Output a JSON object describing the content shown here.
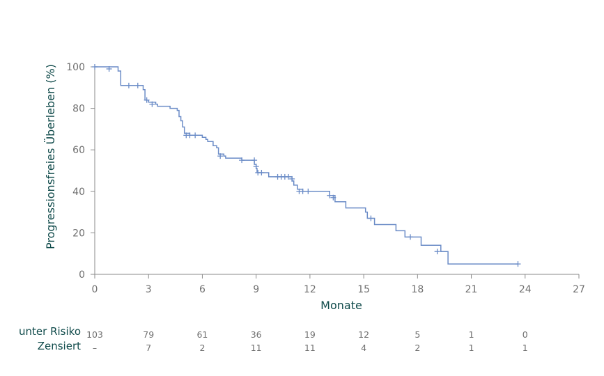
{
  "chart_data": {
    "type": "line",
    "xlabel": "Monate",
    "ylabel": "Progressionsfreies Überleben (%)",
    "xlim": [
      0,
      27
    ],
    "ylim": [
      0,
      100
    ],
    "xticks": [
      "0",
      "3",
      "6",
      "9",
      "12",
      "15",
      "18",
      "21",
      "24",
      "27"
    ],
    "yticks": [
      "0",
      "20",
      "40",
      "60",
      "80",
      "100"
    ],
    "grid": false,
    "series": [
      {
        "color": "#6b8cc7",
        "step_points": [
          [
            0,
            100
          ],
          [
            1.2,
            100
          ],
          [
            1.3,
            98
          ],
          [
            1.45,
            91
          ],
          [
            2.6,
            91
          ],
          [
            2.7,
            89
          ],
          [
            2.8,
            84
          ],
          [
            3.0,
            83
          ],
          [
            3.4,
            82
          ],
          [
            3.5,
            81
          ],
          [
            4.2,
            80
          ],
          [
            4.6,
            79
          ],
          [
            4.7,
            76
          ],
          [
            4.8,
            74
          ],
          [
            4.9,
            71
          ],
          [
            5.0,
            68
          ],
          [
            5.3,
            67
          ],
          [
            6.0,
            66
          ],
          [
            6.2,
            65
          ],
          [
            6.3,
            64
          ],
          [
            6.6,
            62
          ],
          [
            6.8,
            61
          ],
          [
            6.9,
            58
          ],
          [
            7.2,
            57
          ],
          [
            7.3,
            56
          ],
          [
            8.2,
            55
          ],
          [
            8.8,
            55
          ],
          [
            8.9,
            53
          ],
          [
            9.0,
            51
          ],
          [
            9.05,
            49
          ],
          [
            9.6,
            49
          ],
          [
            9.7,
            47
          ],
          [
            10.9,
            47
          ],
          [
            11.0,
            45
          ],
          [
            11.1,
            43
          ],
          [
            11.3,
            41
          ],
          [
            11.6,
            40
          ],
          [
            12.0,
            40
          ],
          [
            13.1,
            38
          ],
          [
            13.4,
            35
          ],
          [
            13.9,
            35
          ],
          [
            14.0,
            32
          ],
          [
            14.9,
            32
          ],
          [
            15.1,
            30
          ],
          [
            15.2,
            27
          ],
          [
            15.6,
            24
          ],
          [
            16.6,
            24
          ],
          [
            16.8,
            21
          ],
          [
            17.2,
            21
          ],
          [
            17.3,
            18
          ],
          [
            18.0,
            18
          ],
          [
            18.2,
            14
          ],
          [
            19.2,
            14
          ],
          [
            19.3,
            11
          ],
          [
            19.6,
            11
          ],
          [
            19.7,
            5
          ],
          [
            23.6,
            5
          ]
        ],
        "censor_points": [
          [
            0,
            100
          ],
          [
            0.8,
            99
          ],
          [
            1.9,
            91
          ],
          [
            2.4,
            91
          ],
          [
            2.9,
            84
          ],
          [
            3.2,
            82
          ],
          [
            5.1,
            67
          ],
          [
            5.3,
            67
          ],
          [
            5.6,
            67
          ],
          [
            7.0,
            57
          ],
          [
            8.2,
            55
          ],
          [
            8.9,
            55
          ],
          [
            9.0,
            52
          ],
          [
            9.1,
            49
          ],
          [
            9.3,
            49
          ],
          [
            10.2,
            47
          ],
          [
            10.4,
            47
          ],
          [
            10.6,
            47
          ],
          [
            10.8,
            47
          ],
          [
            11.0,
            46
          ],
          [
            11.4,
            40
          ],
          [
            11.6,
            40
          ],
          [
            11.9,
            40
          ],
          [
            13.1,
            38
          ],
          [
            13.3,
            37
          ],
          [
            15.4,
            27
          ],
          [
            17.6,
            18
          ],
          [
            19.1,
            11
          ],
          [
            23.6,
            5
          ]
        ]
      }
    ]
  },
  "risk_table": {
    "rows": [
      {
        "label": "unter Risiko",
        "values": [
          "103",
          "79",
          "61",
          "36",
          "19",
          "12",
          "5",
          "1",
          "0"
        ]
      },
      {
        "label": "Zensiert",
        "values": [
          "–",
          "7",
          "2",
          "11",
          "11",
          "4",
          "2",
          "1",
          "1"
        ]
      }
    ]
  }
}
